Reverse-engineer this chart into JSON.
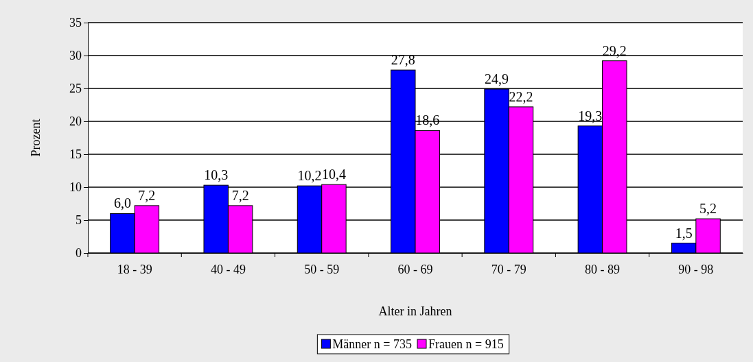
{
  "chart_data": {
    "type": "bar",
    "ylabel": "Prozent",
    "xlabel": "Alter in Jahren",
    "categories": [
      "18 - 39",
      "40 - 49",
      "50 - 59",
      "60 - 69",
      "70 - 79",
      "80 - 89",
      "90 - 98"
    ],
    "series": [
      {
        "name": "Männer n = 735",
        "color": "#0000ff",
        "values": [
          6.0,
          10.3,
          10.2,
          27.8,
          24.9,
          19.3,
          1.5
        ],
        "value_labels": [
          "6,0",
          "10,3",
          "10,2",
          "27,8",
          "24,9",
          "19,3",
          "1,5"
        ]
      },
      {
        "name": "Frauen n = 915",
        "color": "#ff00ff",
        "values": [
          7.2,
          7.2,
          10.4,
          18.6,
          22.2,
          29.2,
          5.2
        ],
        "value_labels": [
          "7,2",
          "7,2",
          "10,4",
          "18,6",
          "22,2",
          "29,2",
          "5,2"
        ]
      }
    ],
    "ylim": [
      0,
      35
    ],
    "yticks": [
      0,
      5,
      10,
      15,
      20,
      25,
      30,
      35
    ],
    "grid": "y",
    "legend": "bottom"
  }
}
